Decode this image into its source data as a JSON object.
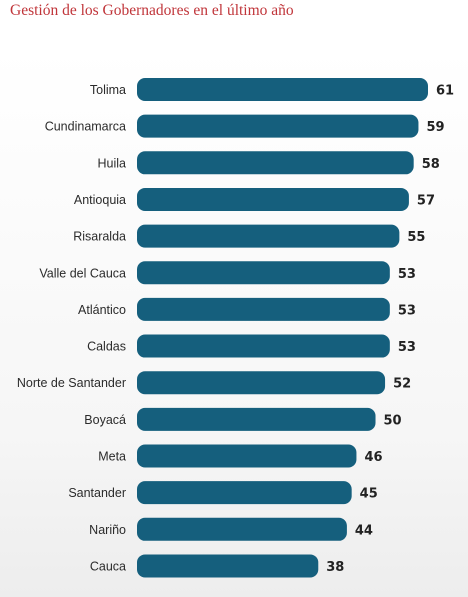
{
  "chart_data": {
    "type": "bar",
    "orientation": "horizontal",
    "title": "Gestión de los Gobernadores en el último año",
    "categories": [
      "Tolima",
      "Cundinamarca",
      "Huila",
      "Antioquia",
      "Risaralda",
      "Valle del Cauca",
      "Atlántico",
      "Caldas",
      "Norte de Santander",
      "Boyacá",
      "Meta",
      "Santander",
      "Nariño",
      "Cauca"
    ],
    "values": [
      61,
      59,
      58,
      57,
      55,
      53,
      53,
      53,
      52,
      50,
      46,
      45,
      44,
      38
    ],
    "xlim": [
      0,
      61
    ],
    "grid": false,
    "legend": "none"
  },
  "colors": {
    "bar": "#155f7d",
    "title": "#c0353a"
  }
}
